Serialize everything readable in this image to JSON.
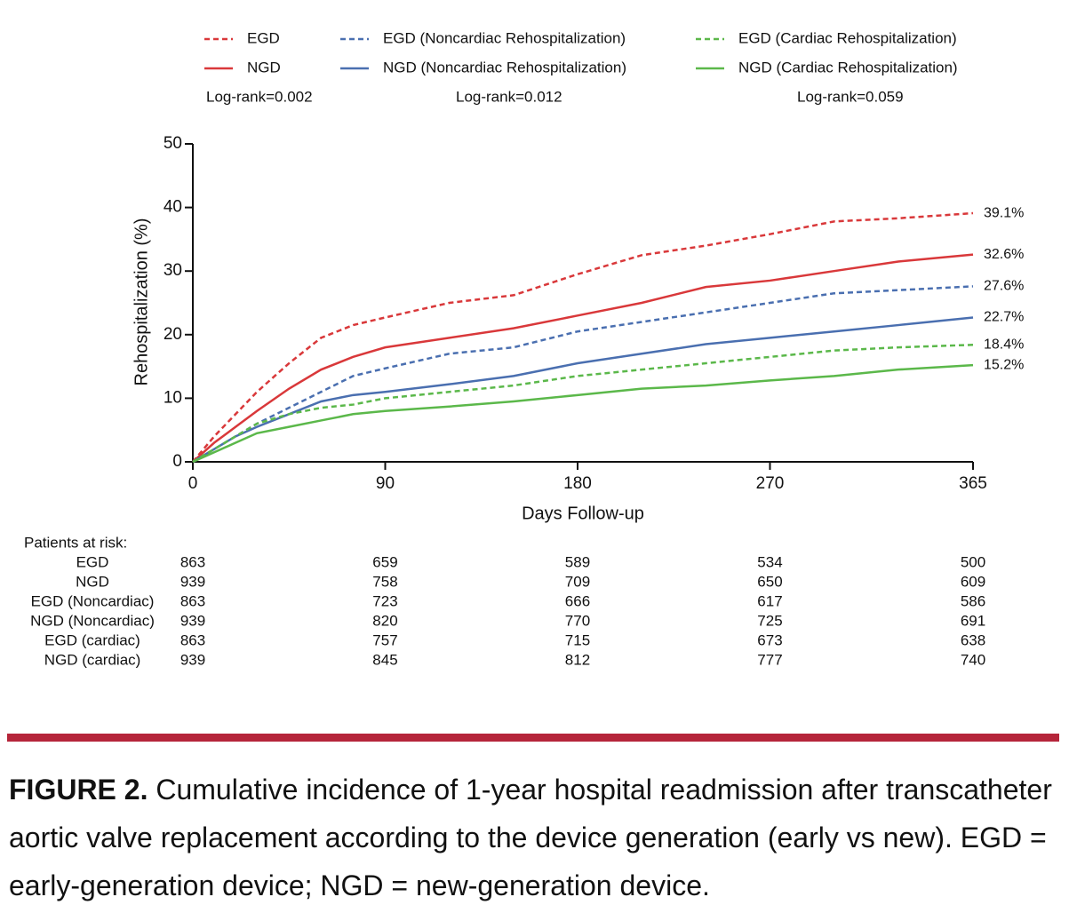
{
  "chart_data": {
    "type": "line",
    "y_label": "Rehospitalization (%)",
    "x_label": "Days Follow-up",
    "xlim": [
      0,
      365
    ],
    "xticks": [
      0,
      90,
      180,
      270,
      365
    ],
    "ylim": [
      0,
      50
    ],
    "yticks": [
      0,
      10,
      20,
      30,
      40,
      50
    ],
    "legend_position": "top",
    "log_rank": [
      "Log-rank=0.002",
      "Log-rank=0.012",
      "Log-rank=0.059"
    ],
    "x": [
      0,
      10,
      20,
      30,
      45,
      60,
      75,
      90,
      120,
      150,
      180,
      210,
      240,
      270,
      300,
      330,
      365
    ],
    "series": [
      {
        "name": "EGD",
        "color": "#d9383a",
        "dashed": true,
        "end_label": "39.1%",
        "values": [
          0,
          4,
          7.5,
          11,
          15.5,
          19.5,
          21.5,
          22.7,
          25,
          26.2,
          29.5,
          32.5,
          34,
          35.8,
          37.8,
          38.3,
          39.1
        ]
      },
      {
        "name": "NGD",
        "color": "#d9383a",
        "dashed": false,
        "end_label": "32.6%",
        "values": [
          0,
          3,
          5.5,
          8,
          11.5,
          14.5,
          16.5,
          18,
          19.5,
          21,
          23,
          25,
          27.5,
          28.5,
          30,
          31.5,
          32.6
        ]
      },
      {
        "name": "EGD (Noncardiac Rehospitalization)",
        "color": "#4a6fb0",
        "dashed": true,
        "end_label": "27.6%",
        "values": [
          0,
          2,
          4,
          6,
          8.5,
          11,
          13.5,
          14.7,
          17,
          18,
          20.5,
          22,
          23.5,
          25,
          26.5,
          27,
          27.6
        ]
      },
      {
        "name": "NGD (Noncardiac Rehospitalization)",
        "color": "#4a6fb0",
        "dashed": false,
        "end_label": "22.7%",
        "values": [
          0,
          2,
          4,
          5.5,
          7.5,
          9.5,
          10.5,
          11,
          12.2,
          13.5,
          15.5,
          17,
          18.5,
          19.5,
          20.5,
          21.5,
          22.7
        ]
      },
      {
        "name": "EGD (Cardiac Rehospitalization)",
        "color": "#5bb84a",
        "dashed": true,
        "end_label": "18.4%",
        "values": [
          0,
          2,
          4,
          6,
          7.5,
          8.5,
          9,
          10,
          11,
          12,
          13.5,
          14.5,
          15.5,
          16.5,
          17.5,
          18,
          18.4
        ]
      },
      {
        "name": "NGD (Cardiac Rehospitalization)",
        "color": "#5bb84a",
        "dashed": false,
        "end_label": "15.2%",
        "values": [
          0,
          1.5,
          3,
          4.5,
          5.5,
          6.5,
          7.5,
          8,
          8.7,
          9.5,
          10.5,
          11.5,
          12,
          12.8,
          13.5,
          14.5,
          15.2
        ]
      }
    ],
    "risk_table": {
      "title": "Patients at risk:",
      "rows": [
        {
          "label": "EGD",
          "values": [
            863,
            659,
            589,
            534,
            500
          ]
        },
        {
          "label": "NGD",
          "values": [
            939,
            758,
            709,
            650,
            609
          ]
        },
        {
          "label": "EGD (Noncardiac)",
          "values": [
            863,
            723,
            666,
            617,
            586
          ]
        },
        {
          "label": "NGD (Noncardiac)",
          "values": [
            939,
            820,
            770,
            725,
            691
          ]
        },
        {
          "label": "EGD (cardiac)",
          "values": [
            863,
            757,
            715,
            673,
            638
          ]
        },
        {
          "label": "NGD (cardiac)",
          "values": [
            939,
            845,
            812,
            777,
            740
          ]
        }
      ]
    }
  },
  "caption": {
    "label": "FIGURE 2.",
    "text": "Cumulative incidence of 1-year hospital readmission after transcatheter aortic valve replacement according to the device generation (early vs new). EGD = early-generation device; NGD = new-generation device."
  }
}
